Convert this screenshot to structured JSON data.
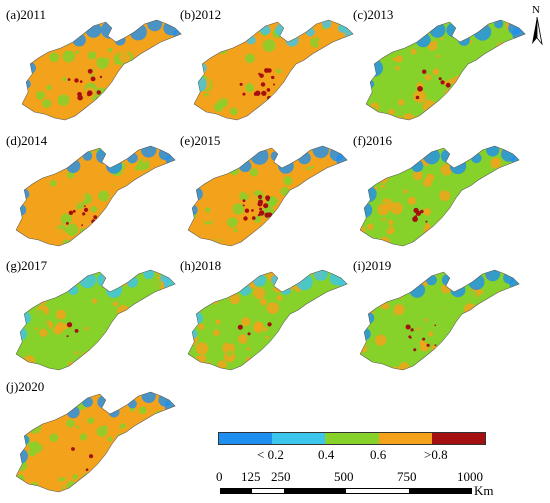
{
  "panels": [
    {
      "label": "(a)2011",
      "dominant": "#f2a31b",
      "secondary": "#86d12a",
      "coast": "#1e8ff0",
      "hot_share": 0.55,
      "dark_share": 0.04
    },
    {
      "label": "(b)2012",
      "dominant": "#f2a31b",
      "secondary": "#86d12a",
      "coast": "#3cc6ee",
      "hot_share": 0.7,
      "dark_share": 0.05
    },
    {
      "label": "(c)2013",
      "dominant": "#86d12a",
      "secondary": "#f2a31b",
      "coast": "#1e8ff0",
      "hot_share": 0.4,
      "dark_share": 0.02
    },
    {
      "label": "(d)2014",
      "dominant": "#f2a31b",
      "secondary": "#86d12a",
      "coast": "#1e8ff0",
      "hot_share": 0.5,
      "dark_share": 0.03
    },
    {
      "label": "(e)2015",
      "dominant": "#f2a31b",
      "secondary": "#86d12a",
      "coast": "#1e8ff0",
      "hot_share": 0.75,
      "dark_share": 0.06
    },
    {
      "label": "(f)2016",
      "dominant": "#86d12a",
      "secondary": "#f2a31b",
      "coast": "#1e8ff0",
      "hot_share": 0.45,
      "dark_share": 0.02
    },
    {
      "label": "(g)2017",
      "dominant": "#86d12a",
      "secondary": "#f2a31b",
      "coast": "#3cc6ee",
      "hot_share": 0.45,
      "dark_share": 0.01
    },
    {
      "label": "(h)2018",
      "dominant": "#86d12a",
      "secondary": "#f2a31b",
      "coast": "#3cc6ee",
      "hot_share": 0.4,
      "dark_share": 0.01
    },
    {
      "label": "(i)2019",
      "dominant": "#86d12a",
      "secondary": "#f2a31b",
      "coast": "#1e8ff0",
      "hot_share": 0.5,
      "dark_share": 0.03
    },
    {
      "label": "(j)2020",
      "dominant": "#f2a31b",
      "secondary": "#86d12a",
      "coast": "#1e8ff0",
      "hot_share": 0.55,
      "dark_share": 0.01
    }
  ],
  "legend": {
    "colors": [
      "#1e8ff0",
      "#3cc6ee",
      "#86d12a",
      "#f2a31b",
      "#a50f0f"
    ],
    "labels": [
      "< 0.2",
      "0.4",
      "0.6",
      ">0.8"
    ]
  },
  "scale_bar": {
    "ticks": [
      "0",
      "125",
      "250",
      "500",
      "750",
      "1000"
    ],
    "unit": "Km"
  },
  "north_arrow": {
    "letter": "N",
    "icon": "north-arrow-icon"
  }
}
